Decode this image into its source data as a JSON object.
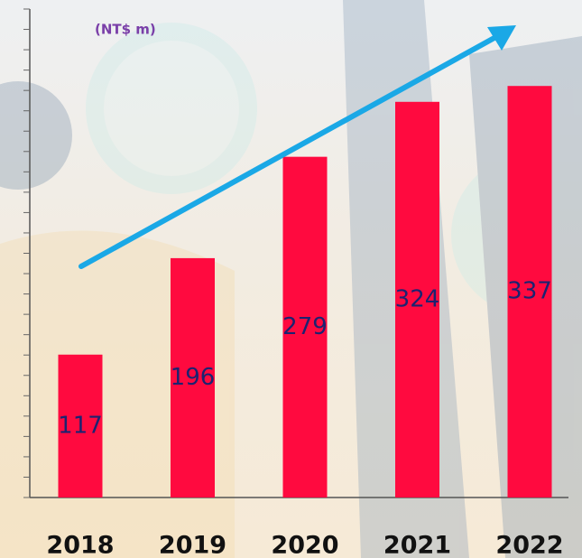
{
  "chart_data": {
    "type": "bar",
    "unit_label": "(NT$ m)",
    "categories": [
      "2018",
      "2019",
      "2020",
      "2021",
      "2022"
    ],
    "values": [
      117,
      196,
      279,
      324,
      337
    ],
    "color": "#ff0a3f",
    "label_color": "#1c2370",
    "ylim": [
      0,
      400
    ]
  }
}
